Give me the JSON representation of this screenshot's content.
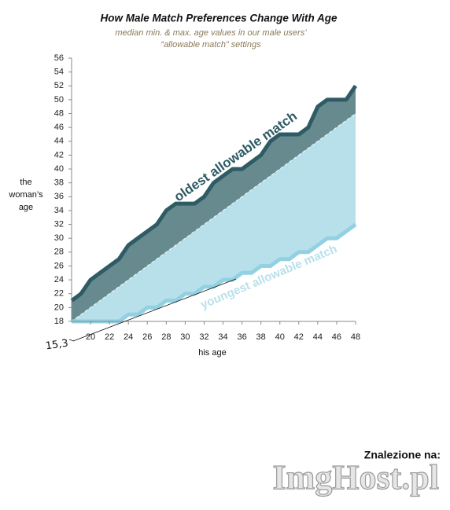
{
  "chart_data": {
    "type": "line",
    "title": "How Male Match Preferences Change With Age",
    "subtitle": [
      "median min. & max. age values in our male users’",
      "“allowable match” settings"
    ],
    "x_label": "his age",
    "y_label": [
      "the",
      "woman’s",
      "age"
    ],
    "x": [
      18,
      19,
      20,
      21,
      22,
      23,
      24,
      25,
      26,
      27,
      28,
      29,
      30,
      31,
      32,
      33,
      34,
      35,
      36,
      37,
      38,
      39,
      40,
      41,
      42,
      43,
      44,
      45,
      46,
      47,
      48
    ],
    "series": [
      {
        "name": "oldest allowable match",
        "color": "#2e5b64",
        "fill": "#678a8f",
        "values": [
          21,
          22,
          24,
          25,
          26,
          27,
          29,
          30,
          31,
          32,
          34,
          35,
          35,
          35,
          36,
          38,
          39,
          40,
          40,
          41,
          42,
          44,
          45,
          45,
          45,
          46,
          49,
          50,
          50,
          50,
          52
        ]
      },
      {
        "name": "youngest allowable match",
        "color": "#92d1e2",
        "fill": "#b8e0eb",
        "values": [
          18,
          18,
          18,
          18,
          18,
          18,
          19,
          19,
          20,
          20,
          21,
          21,
          22,
          22,
          23,
          23,
          24,
          24,
          25,
          25,
          26,
          26,
          27,
          27,
          28,
          28,
          29,
          30,
          30,
          31,
          32
        ]
      }
    ],
    "xlim": [
      18,
      48
    ],
    "xticks": [
      20,
      22,
      24,
      26,
      28,
      30,
      32,
      34,
      36,
      38,
      40,
      42,
      44,
      46,
      48
    ],
    "ylim": [
      18,
      56
    ],
    "yticks": [
      18,
      20,
      22,
      24,
      26,
      28,
      30,
      32,
      34,
      36,
      38,
      40,
      42,
      44,
      46,
      48,
      50,
      52,
      54,
      56
    ],
    "annotation": "15,3",
    "footer": {
      "found_on": "Znalezione na:",
      "watermark": "ImgHost.pl"
    }
  }
}
